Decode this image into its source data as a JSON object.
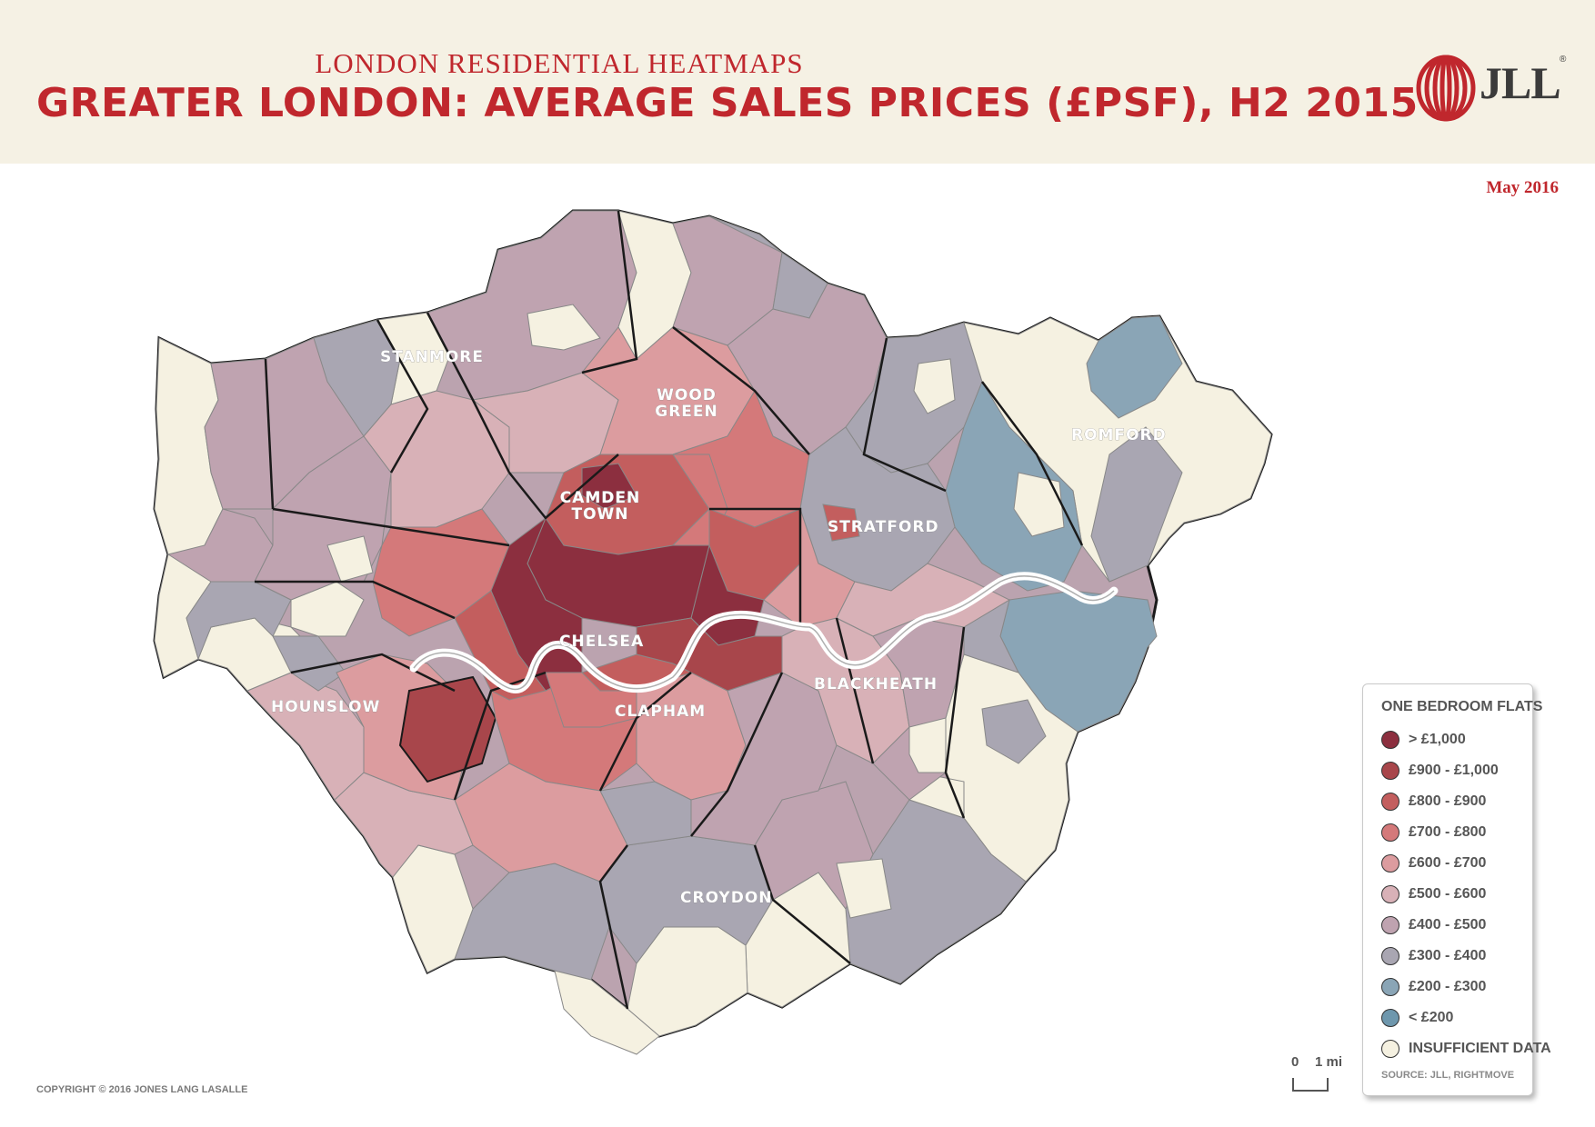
{
  "header": {
    "subtitle": "LONDON RESIDENTIAL HEATMAPS",
    "title": "GREATER LONDON: AVERAGE SALES PRICES (£PSF), H2 2015",
    "logo_text": "JLL",
    "logo_mark": "®"
  },
  "date": "May 2016",
  "colors": {
    "accent": "#c0272d",
    "header_bg": "#f5f1e4",
    "river": "#ffffff",
    "borough_border": "#1a1a1a"
  },
  "map": {
    "places": [
      {
        "id": "stanmore",
        "label": "STANMORE"
      },
      {
        "id": "wood-green",
        "label": "WOOD GREEN"
      },
      {
        "id": "romford",
        "label": "ROMFORD"
      },
      {
        "id": "camden-town",
        "label": "CAMDEN TOWN"
      },
      {
        "id": "stratford",
        "label": "STRATFORD"
      },
      {
        "id": "chelsea",
        "label": "CHELSEA"
      },
      {
        "id": "hounslow",
        "label": "HOUNSLOW"
      },
      {
        "id": "clapham",
        "label": "CLAPHAM"
      },
      {
        "id": "blackheath",
        "label": "BLACKHEATH"
      },
      {
        "id": "croydon",
        "label": "CROYDON"
      }
    ]
  },
  "legend": {
    "title": "ONE BEDROOM FLATS",
    "items": [
      {
        "label": "> £1,000",
        "color": "#8c2f3f"
      },
      {
        "label": "£900 - £1,000",
        "color": "#a8464b"
      },
      {
        "label": "£800 - £900",
        "color": "#c35e5e"
      },
      {
        "label": "£700 - £800",
        "color": "#d4797a"
      },
      {
        "label": "£600 - £700",
        "color": "#dc9c9f"
      },
      {
        "label": "£500 - £600",
        "color": "#d8b1b7"
      },
      {
        "label": "£400 - £500",
        "color": "#bfa3b0"
      },
      {
        "label": "£300 - £400",
        "color": "#a9a6b2"
      },
      {
        "label": "£200 - £300",
        "color": "#8aa5b6"
      },
      {
        "label": "< £200",
        "color": "#6e97ad"
      },
      {
        "label": "INSUFFICIENT DATA",
        "color": "#f5f1e1"
      }
    ],
    "source": "SOURCE: JLL, RIGHTMOVE"
  },
  "scale": {
    "zero": "0",
    "unit": "1 mi"
  },
  "copyright": "COPYRIGHT © 2016 JONES LANG LASALLE"
}
